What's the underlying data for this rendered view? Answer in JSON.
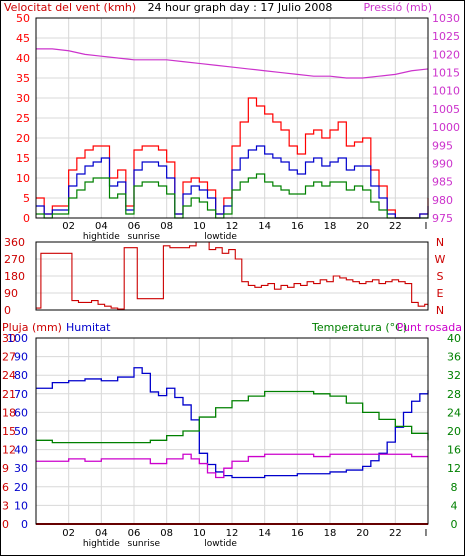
{
  "colors": {
    "wind_max": "#ff0000",
    "wind_avg": "#0000cc",
    "wind_min": "#008000",
    "pressure": "#cc33cc",
    "direction": "#cc0000",
    "rain": "#cc0000",
    "humidity": "#0000cc",
    "temperature": "#008000",
    "dewpoint": "#cc00cc",
    "frame": "#000000",
    "grid": "#d8d8d8"
  },
  "chart_data": [
    {
      "type": "line",
      "title": "24 hour graph day : 17 Julio 2008",
      "ylabel_left": "Velocitat del vent (kmh)",
      "ylabel_right": "Pressió (mb)",
      "ylim_left": [
        0,
        50
      ],
      "ylim_right": [
        975,
        1030
      ],
      "yticks_left": [
        "0",
        "5",
        "10",
        "15",
        "20",
        "25",
        "30",
        "35",
        "40",
        "45",
        "50"
      ],
      "yticks_right": [
        "975",
        "980",
        "985",
        "990",
        "995",
        "1000",
        "1005",
        "1010",
        "1015",
        "1020",
        "1025",
        "1030"
      ],
      "xlim": [
        0,
        24
      ],
      "xticks": [
        "02",
        "04",
        "06",
        "08",
        "10",
        "12",
        "14",
        "16",
        "18",
        "20",
        "22"
      ],
      "xtick_values": [
        2,
        4,
        6,
        8,
        10,
        12,
        14,
        16,
        18,
        20,
        22
      ],
      "annotations": [
        {
          "text": "hightide",
          "x": 4
        },
        {
          "text": "sunrise",
          "x": 6.6
        },
        {
          "text": "lowtide",
          "x": 11.3
        }
      ],
      "grid": true,
      "series": [
        {
          "name": "max",
          "axis": "left",
          "x": [
            0,
            0.5,
            1,
            1.5,
            2,
            2.5,
            3,
            3.5,
            4,
            4.5,
            5,
            5.5,
            6,
            6.5,
            7,
            7.5,
            8,
            8.5,
            9,
            9.5,
            10,
            10.5,
            11,
            11.5,
            12,
            12.5,
            13,
            13.5,
            14,
            14.5,
            15,
            15.5,
            16,
            16.5,
            17,
            17.5,
            18,
            18.5,
            19,
            19.5,
            20,
            20.5,
            21,
            21.5,
            22,
            22.5,
            23,
            23.5,
            24
          ],
          "values": [
            5,
            1,
            3,
            3,
            12,
            15,
            17,
            18,
            18,
            10,
            12,
            3,
            17,
            18,
            18,
            17,
            14,
            1,
            9,
            10,
            9,
            7,
            1,
            5,
            18,
            24,
            30,
            28,
            26,
            24,
            22,
            18,
            16,
            21,
            22,
            20,
            22,
            24,
            18,
            19,
            20,
            12,
            8,
            2,
            0,
            0,
            0,
            1,
            5
          ]
        },
        {
          "name": "avg",
          "axis": "left",
          "x": [
            0,
            0.5,
            1,
            1.5,
            2,
            2.5,
            3,
            3.5,
            4,
            4.5,
            5,
            5.5,
            6,
            6.5,
            7,
            7.5,
            8,
            8.5,
            9,
            9.5,
            10,
            10.5,
            11,
            11.5,
            12,
            12.5,
            13,
            13.5,
            14,
            14.5,
            15,
            15.5,
            16,
            16.5,
            17,
            17.5,
            18,
            18.5,
            19,
            19.5,
            20,
            20.5,
            21,
            21.5,
            22,
            22.5,
            23,
            23.5,
            24
          ],
          "values": [
            3,
            1,
            2,
            2,
            8,
            11,
            13,
            14,
            15,
            8,
            9,
            2,
            12,
            14,
            14,
            13,
            10,
            1,
            6,
            8,
            7,
            5,
            1,
            3,
            12,
            15,
            17,
            18,
            16,
            15,
            14,
            12,
            11,
            14,
            15,
            13,
            14,
            15,
            12,
            13,
            13,
            8,
            5,
            1,
            0,
            0,
            0,
            1,
            3
          ]
        },
        {
          "name": "min",
          "axis": "left",
          "x": [
            0,
            0.5,
            1,
            1.5,
            2,
            2.5,
            3,
            3.5,
            4,
            4.5,
            5,
            5.5,
            6,
            6.5,
            7,
            7.5,
            8,
            8.5,
            9,
            9.5,
            10,
            10.5,
            11,
            11.5,
            12,
            12.5,
            13,
            13.5,
            14,
            14.5,
            15,
            15.5,
            16,
            16.5,
            17,
            17.5,
            18,
            18.5,
            19,
            19.5,
            20,
            20.5,
            21,
            21.5,
            22,
            22.5,
            23,
            23.5,
            24
          ],
          "values": [
            1,
            0,
            1,
            1,
            5,
            7,
            9,
            10,
            10,
            5,
            6,
            1,
            8,
            9,
            9,
            8,
            6,
            0,
            3,
            5,
            4,
            2,
            0,
            1,
            7,
            9,
            10,
            11,
            9,
            8,
            7,
            6,
            6,
            8,
            9,
            8,
            9,
            9,
            7,
            8,
            7,
            4,
            2,
            0,
            0,
            0,
            0,
            0,
            1
          ]
        },
        {
          "name": "pressure",
          "axis": "right",
          "x": [
            0,
            1,
            2,
            3,
            4,
            5,
            6,
            7,
            8,
            9,
            10,
            11,
            12,
            13,
            14,
            15,
            16,
            17,
            18,
            19,
            20,
            21,
            22,
            23,
            24
          ],
          "values": [
            1021.5,
            1021.5,
            1021,
            1020,
            1019.5,
            1019,
            1018.5,
            1018.5,
            1018.5,
            1018,
            1017.5,
            1017,
            1016.5,
            1016,
            1015.5,
            1015,
            1014.5,
            1014,
            1014,
            1013.5,
            1013.5,
            1014,
            1014.5,
            1015.5,
            1016
          ]
        }
      ]
    },
    {
      "type": "line",
      "title": "",
      "ylabel_left": "",
      "ylim": [
        0,
        360
      ],
      "yticks": [
        "0",
        "90",
        "180",
        "270",
        "360"
      ],
      "right_labels": [
        "N",
        "W",
        "S",
        "E",
        "N"
      ],
      "xlim": [
        0,
        24
      ],
      "series": [
        {
          "name": "direction",
          "x": [
            0,
            0.3,
            0.6,
            1,
            1.4,
            1.8,
            2.2,
            2.6,
            3,
            3.4,
            3.8,
            4.2,
            4.6,
            5,
            5.4,
            5.8,
            6.2,
            6.6,
            7,
            7.4,
            7.8,
            8.2,
            8.6,
            9,
            9.4,
            9.8,
            10.2,
            10.6,
            11,
            11.4,
            11.8,
            12.2,
            12.6,
            13,
            13.4,
            13.8,
            14.2,
            14.6,
            15,
            15.4,
            15.8,
            16.2,
            16.6,
            17,
            17.4,
            17.8,
            18.2,
            18.6,
            19,
            19.4,
            19.8,
            20.2,
            20.6,
            21,
            21.4,
            21.8,
            22.2,
            22.6,
            23,
            23.4,
            23.8,
            24
          ],
          "values": [
            10,
            300,
            300,
            300,
            300,
            300,
            50,
            40,
            40,
            50,
            30,
            20,
            10,
            5,
            330,
            330,
            60,
            60,
            60,
            60,
            340,
            330,
            330,
            330,
            340,
            360,
            360,
            320,
            330,
            300,
            320,
            270,
            150,
            130,
            120,
            130,
            140,
            110,
            130,
            120,
            140,
            130,
            150,
            140,
            160,
            150,
            180,
            170,
            160,
            150,
            140,
            150,
            160,
            140,
            150,
            160,
            150,
            140,
            40,
            20,
            30,
            20
          ]
        }
      ]
    },
    {
      "type": "line",
      "title": "",
      "ylabel_left": "Pluja (mm)",
      "ylabel_left2": "Humitat",
      "ylabel_right": "Temperatura (°C)",
      "ylabel_right2": "Punt rosada",
      "ylim_left_rain": [
        0,
        30
      ],
      "ylim_left_hum": [
        0,
        100
      ],
      "ylim_right": [
        0,
        40
      ],
      "yticks_left_rain": [
        "0",
        "3",
        "6",
        "9",
        "12",
        "15",
        "18",
        "21",
        "24",
        "27",
        "30"
      ],
      "yticks_left_hum": [
        "0",
        "10",
        "20",
        "30",
        "40",
        "50",
        "60",
        "70",
        "80",
        "90",
        "100"
      ],
      "yticks_right": [
        "0",
        "4",
        "8",
        "12",
        "16",
        "20",
        "24",
        "28",
        "32",
        "36",
        "40"
      ],
      "xlim": [
        0,
        24
      ],
      "xticks": [
        "02",
        "04",
        "06",
        "08",
        "10",
        "12",
        "14",
        "16",
        "18",
        "20",
        "22"
      ],
      "xtick_values": [
        2,
        4,
        6,
        8,
        10,
        12,
        14,
        16,
        18,
        20,
        22
      ],
      "annotations": [
        {
          "text": "hightide",
          "x": 4
        },
        {
          "text": "sunrise",
          "x": 6.6
        },
        {
          "text": "lowtide",
          "x": 11.3
        }
      ],
      "grid": true,
      "series": [
        {
          "name": "humidity",
          "axis": "left_hum",
          "x": [
            0,
            1,
            2,
            3,
            4,
            5,
            6,
            6.5,
            7,
            7.5,
            8,
            8.5,
            9,
            9.5,
            10,
            10.5,
            11,
            11.5,
            12,
            13,
            14,
            15,
            16,
            17,
            18,
            19,
            20,
            20.5,
            21,
            21.5,
            22,
            22.5,
            23,
            23.5,
            24
          ],
          "values": [
            73,
            76,
            77,
            78,
            77,
            79,
            84,
            81,
            71,
            69,
            73,
            68,
            64,
            56,
            38,
            32,
            28,
            26,
            25,
            25,
            26,
            26,
            27,
            27,
            28,
            29,
            31,
            34,
            38,
            44,
            52,
            60,
            66,
            70,
            72
          ]
        },
        {
          "name": "rain",
          "axis": "left_rain",
          "x": [
            0,
            24
          ],
          "values": [
            0,
            0
          ]
        },
        {
          "name": "temperature",
          "axis": "right",
          "x": [
            0,
            1,
            2,
            3,
            4,
            5,
            6,
            7,
            8,
            9,
            10,
            11,
            12,
            13,
            14,
            15,
            16,
            17,
            18,
            19,
            20,
            21,
            22,
            23,
            24
          ],
          "values": [
            18,
            17.5,
            17.5,
            17.5,
            17.5,
            17.5,
            17.5,
            18,
            19,
            20,
            23,
            25,
            26.5,
            27.5,
            28.5,
            28.5,
            28.5,
            28,
            27.5,
            26,
            24,
            22.5,
            21,
            19.5,
            18
          ]
        },
        {
          "name": "dewpoint",
          "axis": "right",
          "x": [
            0,
            1,
            2,
            3,
            4,
            5,
            6,
            7,
            8,
            9,
            9.5,
            10,
            10.5,
            11,
            11.5,
            12,
            13,
            14,
            15,
            16,
            17,
            18,
            19,
            20,
            21,
            22,
            23,
            24
          ],
          "values": [
            13.5,
            13.5,
            14,
            13.5,
            14,
            14,
            14,
            13,
            14,
            15,
            14,
            13,
            11,
            10,
            12,
            13.5,
            14.5,
            15,
            15,
            15,
            14.5,
            15,
            15,
            15,
            15,
            15,
            14.5,
            14.5
          ]
        }
      ]
    }
  ],
  "labels": {
    "top_left": "Velocitat del vent (kmh)",
    "top_center": "24 hour graph day : 17 Julio 2008",
    "top_right": "Pressió (mb)",
    "bottom_rain": "Pluja (mm)",
    "bottom_hum": "Humitat",
    "bottom_temp": "Temperatura (°C)",
    "bottom_dew": "Punt rosada",
    "end_mark": "I"
  }
}
